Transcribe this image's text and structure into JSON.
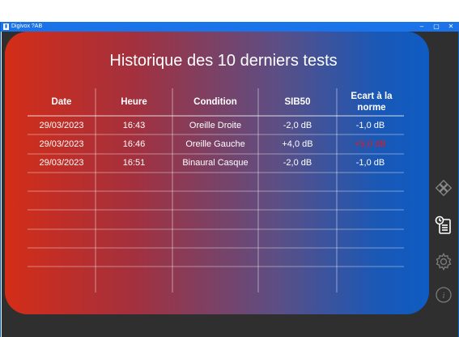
{
  "window": {
    "title": "Digivox ?AB",
    "controls": [
      "minimize",
      "maximize",
      "close"
    ]
  },
  "panel": {
    "title": "Historique des 10 derniers tests"
  },
  "table": {
    "headers": [
      "Date",
      "Heure",
      "Condition",
      "SIB50",
      "Ecart à la norme"
    ],
    "rows": [
      [
        "29/03/2023",
        "16:43",
        "Oreille Droite",
        "-2,0 dB",
        "-1,0 dB"
      ],
      [
        "29/03/2023",
        "16:46",
        "Oreille Gauche",
        "+4,0 dB",
        "+5,0 dB"
      ],
      [
        "29/03/2023",
        "16:51",
        "Binaural Casque",
        "-2,0 dB",
        "-1,0 dB"
      ]
    ],
    "empty_rows": 7,
    "highlight_color": "#e41a1a"
  },
  "sidebar": {
    "icons": [
      "diamond-grid-icon",
      "history-clipboard-icon",
      "gear-icon",
      "info-icon"
    ],
    "active": "history-clipboard-icon"
  }
}
